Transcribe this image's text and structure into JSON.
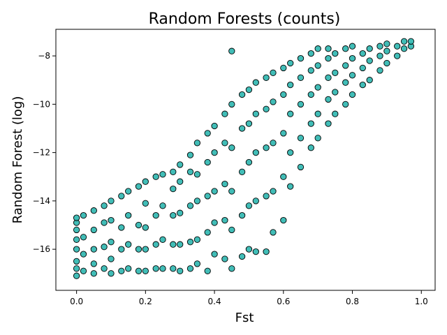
{
  "chart_data": {
    "type": "scatter",
    "title": "Random Forests (counts)",
    "xlabel": "Fst",
    "ylabel": "Random Forest (log)",
    "xlim": [
      -0.06,
      1.04
    ],
    "ylim": [
      -17.7,
      -6.9
    ],
    "x_ticks": [
      0.0,
      0.2,
      0.4,
      0.6,
      0.8,
      1.0
    ],
    "x_tick_labels": [
      "0.0",
      "0.2",
      "0.4",
      "0.6",
      "0.8",
      "1.0"
    ],
    "y_ticks": [
      -8,
      -10,
      -12,
      -14,
      -16
    ],
    "y_tick_labels": [
      "−8",
      "−10",
      "−12",
      "−14",
      "−16"
    ],
    "grid": false,
    "legend": "none",
    "marker_color": "#20b2aa",
    "marker_edge_color": "#000000",
    "series": [
      {
        "points": [
          [
            0.0,
            -17.1
          ],
          [
            0.0,
            -16.8
          ],
          [
            0.0,
            -16.5
          ],
          [
            0.0,
            -16.0
          ],
          [
            0.0,
            -15.6
          ],
          [
            0.0,
            -15.2
          ],
          [
            0.0,
            -14.9
          ],
          [
            0.0,
            -14.7
          ],
          [
            0.02,
            -16.9
          ],
          [
            0.02,
            -16.2
          ],
          [
            0.02,
            -15.5
          ],
          [
            0.02,
            -14.6
          ],
          [
            0.05,
            -17.0
          ],
          [
            0.05,
            -16.6
          ],
          [
            0.05,
            -16.0
          ],
          [
            0.05,
            -15.2
          ],
          [
            0.05,
            -14.4
          ],
          [
            0.08,
            -16.8
          ],
          [
            0.08,
            -15.9
          ],
          [
            0.08,
            -14.9
          ],
          [
            0.08,
            -14.2
          ],
          [
            0.1,
            -17.0
          ],
          [
            0.1,
            -16.4
          ],
          [
            0.1,
            -15.7
          ],
          [
            0.1,
            -14.8
          ],
          [
            0.1,
            -14.0
          ],
          [
            0.13,
            -16.9
          ],
          [
            0.13,
            -16.0
          ],
          [
            0.13,
            -15.1
          ],
          [
            0.13,
            -13.8
          ],
          [
            0.15,
            -16.8
          ],
          [
            0.15,
            -15.8
          ],
          [
            0.15,
            -14.6
          ],
          [
            0.15,
            -13.6
          ],
          [
            0.18,
            -16.9
          ],
          [
            0.18,
            -16.0
          ],
          [
            0.18,
            -15.0
          ],
          [
            0.18,
            -13.4
          ],
          [
            0.2,
            -16.9
          ],
          [
            0.2,
            -16.0
          ],
          [
            0.2,
            -15.1
          ],
          [
            0.2,
            -14.1
          ],
          [
            0.2,
            -13.2
          ],
          [
            0.23,
            -16.8
          ],
          [
            0.23,
            -15.8
          ],
          [
            0.23,
            -14.6
          ],
          [
            0.23,
            -13.0
          ],
          [
            0.25,
            -16.8
          ],
          [
            0.25,
            -15.6
          ],
          [
            0.25,
            -14.2
          ],
          [
            0.25,
            -12.9
          ],
          [
            0.28,
            -16.8
          ],
          [
            0.28,
            -15.8
          ],
          [
            0.28,
            -14.6
          ],
          [
            0.28,
            -13.5
          ],
          [
            0.28,
            -12.8
          ],
          [
            0.3,
            -16.9
          ],
          [
            0.3,
            -15.8
          ],
          [
            0.3,
            -14.5
          ],
          [
            0.3,
            -13.2
          ],
          [
            0.3,
            -12.5
          ],
          [
            0.33,
            -16.8
          ],
          [
            0.33,
            -15.7
          ],
          [
            0.33,
            -14.2
          ],
          [
            0.33,
            -12.8
          ],
          [
            0.33,
            -12.1
          ],
          [
            0.35,
            -16.6
          ],
          [
            0.35,
            -15.6
          ],
          [
            0.35,
            -14.0
          ],
          [
            0.35,
            -12.9
          ],
          [
            0.35,
            -11.6
          ],
          [
            0.38,
            -16.9
          ],
          [
            0.38,
            -15.3
          ],
          [
            0.38,
            -13.8
          ],
          [
            0.38,
            -12.4
          ],
          [
            0.38,
            -11.2
          ],
          [
            0.4,
            -16.2
          ],
          [
            0.4,
            -14.9
          ],
          [
            0.4,
            -13.6
          ],
          [
            0.4,
            -12.0
          ],
          [
            0.4,
            -10.9
          ],
          [
            0.43,
            -16.4
          ],
          [
            0.43,
            -14.8
          ],
          [
            0.43,
            -13.3
          ],
          [
            0.43,
            -11.6
          ],
          [
            0.43,
            -10.4
          ],
          [
            0.45,
            -16.8
          ],
          [
            0.45,
            -15.2
          ],
          [
            0.45,
            -13.6
          ],
          [
            0.45,
            -11.8
          ],
          [
            0.45,
            -10.0
          ],
          [
            0.45,
            -7.8
          ],
          [
            0.48,
            -16.3
          ],
          [
            0.48,
            -14.6
          ],
          [
            0.48,
            -12.8
          ],
          [
            0.48,
            -11.0
          ],
          [
            0.48,
            -9.6
          ],
          [
            0.5,
            -16.0
          ],
          [
            0.5,
            -14.2
          ],
          [
            0.5,
            -12.4
          ],
          [
            0.5,
            -10.8
          ],
          [
            0.5,
            -9.4
          ],
          [
            0.52,
            -16.1
          ],
          [
            0.52,
            -14.0
          ],
          [
            0.52,
            -12.0
          ],
          [
            0.52,
            -10.4
          ],
          [
            0.52,
            -9.1
          ],
          [
            0.55,
            -16.1
          ],
          [
            0.55,
            -13.8
          ],
          [
            0.55,
            -11.8
          ],
          [
            0.55,
            -10.2
          ],
          [
            0.55,
            -8.9
          ],
          [
            0.57,
            -15.3
          ],
          [
            0.57,
            -13.6
          ],
          [
            0.57,
            -11.6
          ],
          [
            0.57,
            -9.9
          ],
          [
            0.57,
            -8.7
          ],
          [
            0.6,
            -14.8
          ],
          [
            0.6,
            -13.0
          ],
          [
            0.6,
            -11.2
          ],
          [
            0.6,
            -9.6
          ],
          [
            0.6,
            -8.5
          ],
          [
            0.62,
            -13.4
          ],
          [
            0.62,
            -12.0
          ],
          [
            0.62,
            -10.4
          ],
          [
            0.62,
            -9.2
          ],
          [
            0.62,
            -8.3
          ],
          [
            0.65,
            -12.6
          ],
          [
            0.65,
            -11.4
          ],
          [
            0.65,
            -10.0
          ],
          [
            0.65,
            -8.9
          ],
          [
            0.65,
            -8.1
          ],
          [
            0.68,
            -11.8
          ],
          [
            0.68,
            -10.8
          ],
          [
            0.68,
            -9.6
          ],
          [
            0.68,
            -8.6
          ],
          [
            0.68,
            -7.9
          ],
          [
            0.7,
            -11.4
          ],
          [
            0.7,
            -10.4
          ],
          [
            0.7,
            -9.3
          ],
          [
            0.7,
            -8.4
          ],
          [
            0.7,
            -7.7
          ],
          [
            0.73,
            -10.8
          ],
          [
            0.73,
            -9.8
          ],
          [
            0.73,
            -8.9
          ],
          [
            0.73,
            -8.1
          ],
          [
            0.73,
            -7.7
          ],
          [
            0.75,
            -10.4
          ],
          [
            0.75,
            -9.5
          ],
          [
            0.75,
            -8.7
          ],
          [
            0.75,
            -7.9
          ],
          [
            0.78,
            -10.0
          ],
          [
            0.78,
            -9.1
          ],
          [
            0.78,
            -8.4
          ],
          [
            0.78,
            -7.7
          ],
          [
            0.8,
            -9.6
          ],
          [
            0.8,
            -8.8
          ],
          [
            0.8,
            -8.1
          ],
          [
            0.8,
            -7.6
          ],
          [
            0.83,
            -9.2
          ],
          [
            0.83,
            -8.5
          ],
          [
            0.83,
            -7.9
          ],
          [
            0.85,
            -9.0
          ],
          [
            0.85,
            -8.2
          ],
          [
            0.85,
            -7.7
          ],
          [
            0.88,
            -8.6
          ],
          [
            0.88,
            -8.0
          ],
          [
            0.88,
            -7.6
          ],
          [
            0.9,
            -8.3
          ],
          [
            0.9,
            -7.8
          ],
          [
            0.9,
            -7.5
          ],
          [
            0.93,
            -8.0
          ],
          [
            0.93,
            -7.6
          ],
          [
            0.95,
            -7.7
          ],
          [
            0.95,
            -7.4
          ],
          [
            0.97,
            -7.6
          ],
          [
            0.97,
            -7.4
          ]
        ]
      }
    ]
  }
}
